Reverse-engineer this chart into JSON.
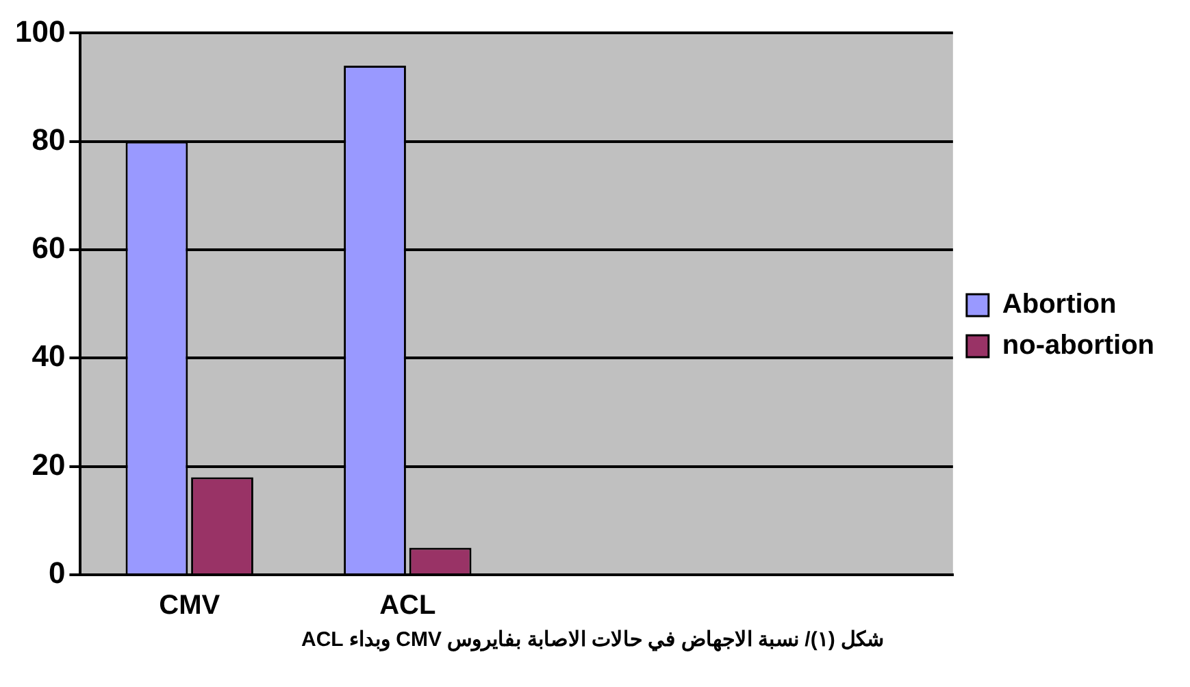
{
  "chart_data": {
    "type": "bar",
    "categories": [
      "CMV",
      "ACL",
      null,
      null
    ],
    "series": [
      {
        "name": "Abortion",
        "color": "#9999ff",
        "values": [
          80,
          94,
          null,
          null
        ]
      },
      {
        "name": "no-abortion",
        "color": "#993366",
        "values": [
          18,
          5,
          null,
          null
        ]
      }
    ],
    "ylim": [
      0,
      100
    ],
    "yticks": [
      0,
      20,
      40,
      60,
      80,
      100
    ],
    "grid": "y",
    "legend": "right",
    "annotations": [
      "شكل (١)/ نسبة الاجهاض في حالات الاصابة بفايروس CMV وبداء ACL"
    ]
  }
}
